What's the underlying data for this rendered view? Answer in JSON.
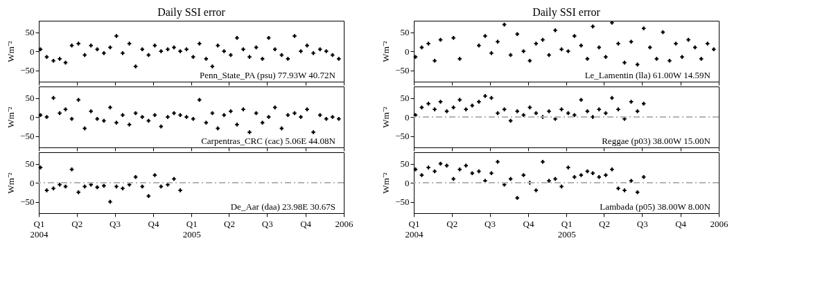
{
  "chart_data": [
    {
      "type": "scatter",
      "title": "Daily SSI error",
      "ylabel": "Wm⁻²",
      "annotations": [
        "Penn_State_PA  (psu)  77.93W 40.72N"
      ],
      "marker": "cross",
      "grid": false,
      "tick_labels": "y",
      "xlim": [
        "2004-01-01",
        "2006-01-01"
      ],
      "ylim": [
        -80,
        80
      ],
      "yticks": [
        -50,
        0,
        50
      ],
      "xticks": [
        {
          "value": "2004-01-01",
          "label": null
        },
        {
          "value": "2004-04-01",
          "label": null
        },
        {
          "value": "2004-07-01",
          "label": null
        },
        {
          "value": "2004-10-01",
          "label": null
        },
        {
          "value": "2005-01-01",
          "label": null
        },
        {
          "value": "2005-04-01",
          "label": null
        },
        {
          "value": "2005-07-01",
          "label": null
        },
        {
          "value": "2005-10-01",
          "label": null
        },
        {
          "value": "2006-01-01",
          "label": null
        }
      ],
      "x": [
        "2004-01-05",
        "2004-01-20",
        "2004-02-05",
        "2004-02-20",
        "2004-03-05",
        "2004-03-20",
        "2004-04-05",
        "2004-04-20",
        "2004-05-05",
        "2004-05-20",
        "2004-06-05",
        "2004-06-20",
        "2004-07-05",
        "2004-07-20",
        "2004-08-05",
        "2004-08-20",
        "2004-09-05",
        "2004-09-20",
        "2004-10-05",
        "2004-10-20",
        "2004-11-05",
        "2004-11-20",
        "2004-12-05",
        "2004-12-20",
        "2005-01-05",
        "2005-01-20",
        "2005-02-05",
        "2005-02-20",
        "2005-03-05",
        "2005-03-20",
        "2005-04-05",
        "2005-04-20",
        "2005-05-05",
        "2005-05-20",
        "2005-06-05",
        "2005-06-20",
        "2005-07-05",
        "2005-07-20",
        "2005-08-05",
        "2005-08-20",
        "2005-09-05",
        "2005-09-20",
        "2005-10-05",
        "2005-10-20",
        "2005-11-05",
        "2005-11-20",
        "2005-12-05",
        "2005-12-20"
      ],
      "series": [
        {
          "color": "#000000",
          "values": [
            5,
            -15,
            -25,
            -20,
            -30,
            15,
            20,
            -10,
            15,
            5,
            -5,
            10,
            40,
            -5,
            20,
            -40,
            5,
            -10,
            15,
            0,
            5,
            10,
            0,
            5,
            -15,
            20,
            -20,
            -40,
            15,
            0,
            -10,
            35,
            5,
            -15,
            10,
            -20,
            35,
            5,
            -10,
            -20,
            40,
            0,
            15,
            -5,
            5,
            0,
            -10,
            -20
          ]
        }
      ]
    },
    {
      "type": "scatter",
      "title": "Daily SSI error",
      "ylabel": "Wm⁻²",
      "annotations": [
        "Le_Lamentin  (lla)  61.00W 14.59N"
      ],
      "marker": "cross",
      "grid": false,
      "tick_labels": "y",
      "xlim": [
        "2004-01-01",
        "2006-01-01"
      ],
      "ylim": [
        -80,
        80
      ],
      "yticks": [
        -50,
        0,
        50
      ],
      "xticks": [
        {
          "value": "2004-01-01",
          "label": null
        },
        {
          "value": "2004-04-01",
          "label": null
        },
        {
          "value": "2004-07-01",
          "label": null
        },
        {
          "value": "2004-10-01",
          "label": null
        },
        {
          "value": "2005-01-01",
          "label": null
        },
        {
          "value": "2005-04-01",
          "label": null
        },
        {
          "value": "2005-07-01",
          "label": null
        },
        {
          "value": "2005-10-01",
          "label": null
        },
        {
          "value": "2006-01-01",
          "label": null
        }
      ],
      "x": [
        "2004-01-05",
        "2004-01-20",
        "2004-02-05",
        "2004-02-20",
        "2004-03-05",
        "2004-04-05",
        "2004-04-20",
        "2004-06-05",
        "2004-06-20",
        "2004-07-05",
        "2004-07-20",
        "2004-08-05",
        "2004-08-20",
        "2004-09-05",
        "2004-09-20",
        "2004-10-05",
        "2004-10-20",
        "2004-11-05",
        "2004-11-20",
        "2004-12-05",
        "2004-12-20",
        "2005-01-05",
        "2005-01-20",
        "2005-02-05",
        "2005-02-20",
        "2005-03-05",
        "2005-03-20",
        "2005-04-05",
        "2005-04-20",
        "2005-05-05",
        "2005-05-20",
        "2005-06-05",
        "2005-06-20",
        "2005-07-05",
        "2005-07-20",
        "2005-08-05",
        "2005-08-20",
        "2005-09-05",
        "2005-09-20",
        "2005-10-05",
        "2005-10-20",
        "2005-11-05",
        "2005-11-20",
        "2005-12-05",
        "2005-12-20"
      ],
      "series": [
        {
          "color": "#000000",
          "values": [
            -15,
            10,
            20,
            -25,
            30,
            35,
            -20,
            15,
            40,
            -5,
            25,
            70,
            -10,
            45,
            0,
            -25,
            20,
            30,
            -10,
            55,
            5,
            0,
            40,
            15,
            -20,
            65,
            10,
            -15,
            75,
            20,
            -30,
            25,
            -35,
            60,
            10,
            -20,
            50,
            -25,
            20,
            -15,
            30,
            10,
            -20,
            20,
            5
          ]
        }
      ]
    },
    {
      "type": "scatter",
      "ylabel": "Wm⁻²",
      "annotations": [
        "Carpentras_CRC  (cac)   5.06E 44.08N"
      ],
      "marker": "cross",
      "grid": false,
      "tick_labels": "y",
      "xlim": [
        "2004-01-01",
        "2006-01-01"
      ],
      "ylim": [
        -80,
        80
      ],
      "yticks": [
        -50,
        0,
        50
      ],
      "xticks": [
        {
          "value": "2004-01-01",
          "label": null
        },
        {
          "value": "2004-04-01",
          "label": null
        },
        {
          "value": "2004-07-01",
          "label": null
        },
        {
          "value": "2004-10-01",
          "label": null
        },
        {
          "value": "2005-01-01",
          "label": null
        },
        {
          "value": "2005-04-01",
          "label": null
        },
        {
          "value": "2005-07-01",
          "label": null
        },
        {
          "value": "2005-10-01",
          "label": null
        },
        {
          "value": "2006-01-01",
          "label": null
        }
      ],
      "x": [
        "2004-01-05",
        "2004-01-20",
        "2004-02-05",
        "2004-02-20",
        "2004-03-05",
        "2004-03-20",
        "2004-04-05",
        "2004-04-20",
        "2004-05-05",
        "2004-05-20",
        "2004-06-05",
        "2004-06-20",
        "2004-07-05",
        "2004-07-20",
        "2004-08-05",
        "2004-08-20",
        "2004-09-05",
        "2004-09-20",
        "2004-10-05",
        "2004-10-20",
        "2004-11-05",
        "2004-11-20",
        "2004-12-05",
        "2004-12-20",
        "2005-01-05",
        "2005-01-20",
        "2005-02-05",
        "2005-02-20",
        "2005-03-05",
        "2005-03-20",
        "2005-04-05",
        "2005-04-20",
        "2005-05-05",
        "2005-05-20",
        "2005-06-05",
        "2005-06-20",
        "2005-07-05",
        "2005-07-20",
        "2005-08-05",
        "2005-08-20",
        "2005-09-05",
        "2005-09-20",
        "2005-10-05",
        "2005-10-20",
        "2005-11-05",
        "2005-11-20",
        "2005-12-05",
        "2005-12-20"
      ],
      "series": [
        {
          "color": "#000000",
          "values": [
            5,
            0,
            50,
            10,
            20,
            -5,
            45,
            -30,
            15,
            -5,
            -10,
            25,
            -15,
            5,
            -20,
            10,
            0,
            -10,
            5,
            -25,
            0,
            10,
            5,
            0,
            -5,
            45,
            -15,
            10,
            -30,
            5,
            15,
            -20,
            20,
            -40,
            10,
            -15,
            0,
            25,
            -30,
            5,
            10,
            0,
            20,
            -40,
            5,
            -5,
            0,
            -5
          ]
        }
      ]
    },
    {
      "type": "scatter",
      "ylabel": "Wm⁻²",
      "annotations": [
        "Reggae  (p03)  38.00W 15.00N"
      ],
      "marker": "cross",
      "grid": false,
      "tick_labels": "y",
      "ref_lines": [
        {
          "axis": "y",
          "value": 0,
          "color": "#b4b4b4",
          "line_style": "dashed"
        }
      ],
      "xlim": [
        "2004-01-01",
        "2006-01-01"
      ],
      "ylim": [
        -80,
        80
      ],
      "yticks": [
        -50,
        0,
        50
      ],
      "xticks": [
        {
          "value": "2004-01-01",
          "label": null
        },
        {
          "value": "2004-04-01",
          "label": null
        },
        {
          "value": "2004-07-01",
          "label": null
        },
        {
          "value": "2004-10-01",
          "label": null
        },
        {
          "value": "2005-01-01",
          "label": null
        },
        {
          "value": "2005-04-01",
          "label": null
        },
        {
          "value": "2005-07-01",
          "label": null
        },
        {
          "value": "2005-10-01",
          "label": null
        },
        {
          "value": "2006-01-01",
          "label": null
        }
      ],
      "x": [
        "2004-01-05",
        "2004-01-20",
        "2004-02-05",
        "2004-02-20",
        "2004-03-05",
        "2004-03-20",
        "2004-04-05",
        "2004-04-20",
        "2004-05-05",
        "2004-05-20",
        "2004-06-05",
        "2004-06-20",
        "2004-07-05",
        "2004-07-20",
        "2004-08-05",
        "2004-08-20",
        "2004-09-05",
        "2004-09-20",
        "2004-10-05",
        "2004-10-20",
        "2004-11-05",
        "2004-11-20",
        "2004-12-05",
        "2004-12-20",
        "2005-01-05",
        "2005-01-20",
        "2005-02-05",
        "2005-02-20",
        "2005-03-05",
        "2005-03-20",
        "2005-04-05",
        "2005-04-20",
        "2005-05-05",
        "2005-05-20",
        "2005-06-05",
        "2005-06-20",
        "2005-07-05"
      ],
      "series": [
        {
          "color": "#000000",
          "values": [
            5,
            25,
            35,
            20,
            40,
            15,
            25,
            45,
            20,
            30,
            40,
            55,
            50,
            10,
            20,
            -10,
            15,
            5,
            25,
            10,
            0,
            15,
            -5,
            20,
            10,
            5,
            45,
            15,
            0,
            20,
            10,
            50,
            20,
            -5,
            40,
            15,
            35
          ]
        }
      ]
    },
    {
      "type": "scatter",
      "ylabel": "Wm⁻²",
      "annotations": [
        "De_Aar  (daa)  23.98E 30.67S"
      ],
      "marker": "cross",
      "grid": false,
      "ref_lines": [
        {
          "axis": "y",
          "value": 0,
          "color": "#b4b4b4",
          "line_style": "dashed"
        }
      ],
      "xlim": [
        "2004-01-01",
        "2006-01-01"
      ],
      "ylim": [
        -80,
        80
      ],
      "yticks": [
        -50,
        0,
        50
      ],
      "xticks": [
        {
          "value": "2004-01-01",
          "label": "Q1\n2004"
        },
        {
          "value": "2004-04-01",
          "label": "Q2"
        },
        {
          "value": "2004-07-01",
          "label": "Q3"
        },
        {
          "value": "2004-10-01",
          "label": "Q4"
        },
        {
          "value": "2005-01-01",
          "label": "Q1\n2005"
        },
        {
          "value": "2005-04-01",
          "label": "Q2"
        },
        {
          "value": "2005-07-01",
          "label": "Q3"
        },
        {
          "value": "2005-10-01",
          "label": "Q4"
        },
        {
          "value": "2006-01-01",
          "label": "2006"
        }
      ],
      "x": [
        "2004-01-05",
        "2004-01-20",
        "2004-02-05",
        "2004-02-20",
        "2004-03-05",
        "2004-03-20",
        "2004-04-05",
        "2004-04-20",
        "2004-05-05",
        "2004-05-20",
        "2004-06-05",
        "2004-06-20",
        "2004-07-05",
        "2004-07-20",
        "2004-08-05",
        "2004-08-20",
        "2004-09-05",
        "2004-09-20",
        "2004-10-05",
        "2004-10-20",
        "2004-11-05",
        "2004-11-20",
        "2004-12-05"
      ],
      "series": [
        {
          "color": "#000000",
          "values": [
            40,
            -20,
            -15,
            -5,
            -10,
            35,
            -25,
            -10,
            -5,
            -12,
            -8,
            -50,
            -10,
            -15,
            -5,
            15,
            -10,
            -35,
            20,
            -10,
            -5,
            10,
            -20
          ]
        }
      ]
    },
    {
      "type": "scatter",
      "ylabel": "Wm⁻²",
      "annotations": [
        "Lambada  (p05)  38.00W  8.00N"
      ],
      "marker": "cross",
      "grid": false,
      "ref_lines": [
        {
          "axis": "y",
          "value": 0,
          "color": "#b4b4b4",
          "line_style": "dashed"
        }
      ],
      "xlim": [
        "2004-01-01",
        "2006-01-01"
      ],
      "ylim": [
        -80,
        80
      ],
      "yticks": [
        -50,
        0,
        50
      ],
      "xticks": [
        {
          "value": "2004-01-01",
          "label": "Q1\n2004"
        },
        {
          "value": "2004-04-01",
          "label": "Q2"
        },
        {
          "value": "2004-07-01",
          "label": "Q3"
        },
        {
          "value": "2004-10-01",
          "label": "Q4"
        },
        {
          "value": "2005-01-01",
          "label": "Q1\n2005"
        },
        {
          "value": "2005-04-01",
          "label": "Q2"
        },
        {
          "value": "2005-07-01",
          "label": "Q3"
        },
        {
          "value": "2005-10-01",
          "label": "Q4"
        },
        {
          "value": "2006-01-01",
          "label": "2006"
        }
      ],
      "x": [
        "2004-01-05",
        "2004-01-20",
        "2004-02-05",
        "2004-02-20",
        "2004-03-05",
        "2004-03-20",
        "2004-04-05",
        "2004-04-20",
        "2004-05-05",
        "2004-05-20",
        "2004-06-05",
        "2004-06-20",
        "2004-07-05",
        "2004-07-20",
        "2004-08-05",
        "2004-08-20",
        "2004-09-05",
        "2004-09-20",
        "2004-10-05",
        "2004-10-20",
        "2004-11-05",
        "2004-11-20",
        "2004-12-05",
        "2004-12-20",
        "2005-01-05",
        "2005-01-20",
        "2005-02-05",
        "2005-02-20",
        "2005-03-05",
        "2005-03-20",
        "2005-04-05",
        "2005-04-20",
        "2005-05-05",
        "2005-05-20",
        "2005-06-05",
        "2005-06-20",
        "2005-07-05"
      ],
      "series": [
        {
          "color": "#000000",
          "values": [
            35,
            20,
            40,
            30,
            50,
            45,
            10,
            35,
            45,
            25,
            30,
            5,
            25,
            55,
            -5,
            10,
            -40,
            20,
            0,
            -20,
            55,
            5,
            10,
            -10,
            40,
            15,
            20,
            30,
            25,
            15,
            20,
            35,
            -15,
            -20,
            5,
            -25,
            15
          ]
        }
      ]
    }
  ]
}
